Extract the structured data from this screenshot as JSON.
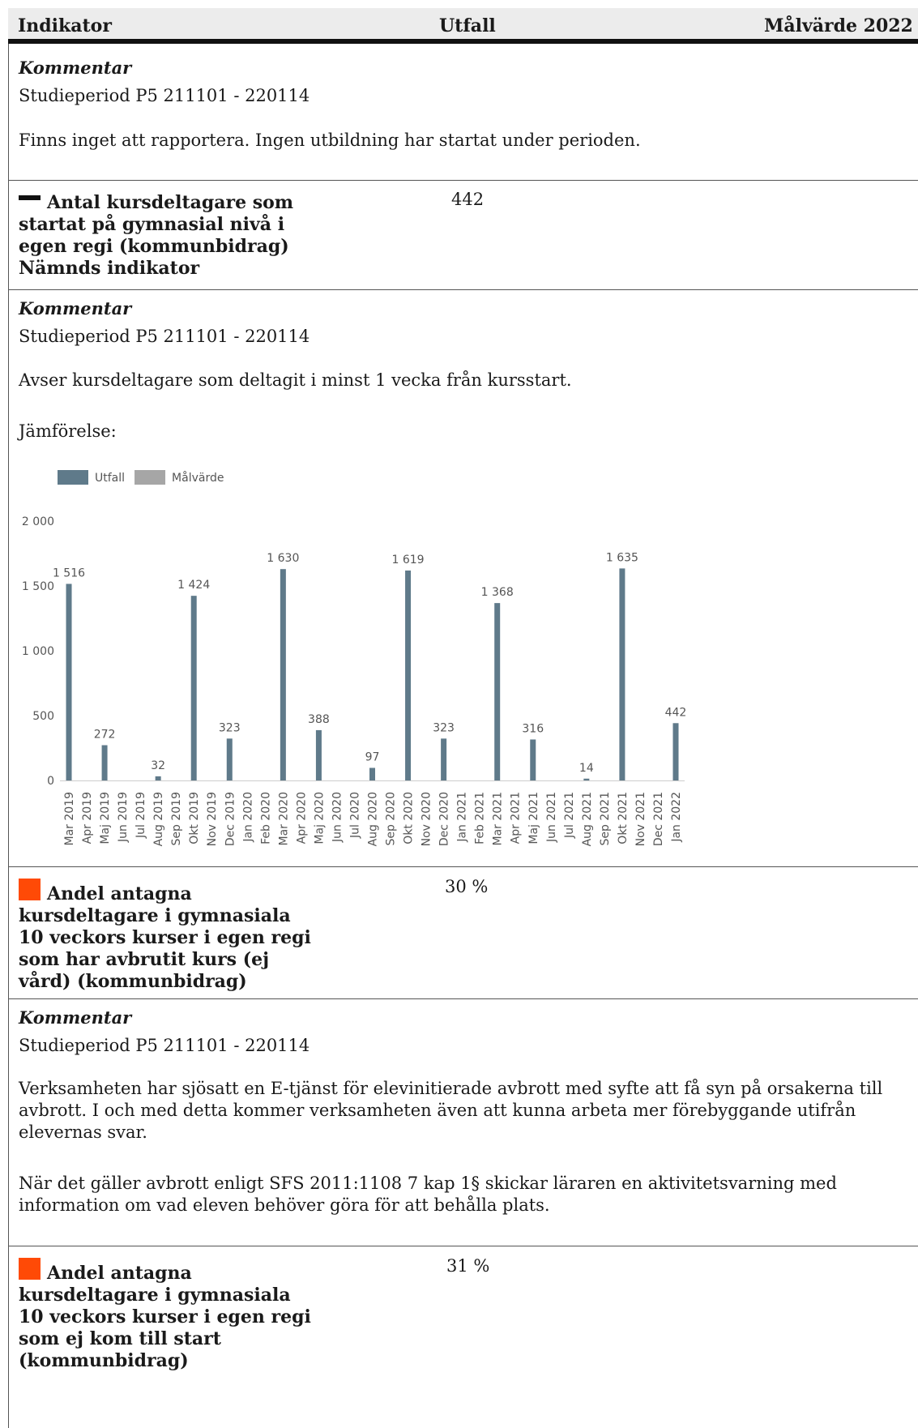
{
  "header": {
    "col1": "Indikator",
    "col2": "Utfall",
    "col3": "Målvärde 2022"
  },
  "section1": {
    "comment_label": "Kommentar",
    "study_period": "Studieperiod P5 211101 - 220114",
    "text": "Finns inget att rapportera. Ingen utbildning har startat under perioden."
  },
  "indicator1": {
    "icon": "minus-icon",
    "title": "Antal kursdeltagare som startat på gymnasial nivå i egen regi (kommunbidrag) Nämnds indikator",
    "value": "442"
  },
  "section2": {
    "comment_label": "Kommentar",
    "study_period": "Studieperiod P5 211101 - 220114",
    "text": "Avser kursdeltagare som deltagit i minst 1 vecka från kursstart.",
    "comparison": "Jämförelse:"
  },
  "chart_data": {
    "type": "bar",
    "legend": [
      {
        "name": "Utfall",
        "color": "#5f7a8a"
      },
      {
        "name": "Målvärde",
        "color": "#a6a6a6"
      }
    ],
    "legend_position": "top-left",
    "ylim": [
      0,
      2000
    ],
    "yticks": [
      0,
      500,
      1000,
      2000
    ],
    "ytick_labels": [
      "0",
      "500",
      "1 000",
      "2 000"
    ],
    "ytick_extra": [
      {
        "value": 1500,
        "label": "1 500"
      }
    ],
    "categories": [
      "Mar 2019",
      "Apr 2019",
      "Maj 2019",
      "Jun 2019",
      "Jul 2019",
      "Aug 2019",
      "Sep 2019",
      "Okt 2019",
      "Nov 2019",
      "Dec 2019",
      "Jan 2020",
      "Feb 2020",
      "Mar 2020",
      "Apr 2020",
      "Maj 2020",
      "Jun 2020",
      "Jul 2020",
      "Aug 2020",
      "Sep 2020",
      "Okt 2020",
      "Nov 2020",
      "Dec 2020",
      "Jan 2021",
      "Feb 2021",
      "Mar 2021",
      "Apr 2021",
      "Maj 2021",
      "Jun 2021",
      "Jul 2021",
      "Aug 2021",
      "Sep 2021",
      "Okt 2021",
      "Nov 2021",
      "Dec 2021",
      "Jan 2022"
    ],
    "series": [
      {
        "name": "Utfall",
        "values": [
          1516,
          null,
          272,
          null,
          null,
          32,
          null,
          1424,
          null,
          323,
          null,
          null,
          1630,
          null,
          388,
          null,
          null,
          97,
          null,
          1619,
          null,
          323,
          null,
          null,
          1368,
          null,
          316,
          null,
          null,
          14,
          null,
          1635,
          null,
          null,
          442
        ],
        "labels": [
          "1 516",
          "",
          "272",
          "",
          "",
          "32",
          "",
          "1 424",
          "",
          "323",
          "",
          "",
          "1 630",
          "",
          "388",
          "",
          "",
          "97",
          "",
          "1 619",
          "",
          "323",
          "",
          "",
          "1 368",
          "",
          "316",
          "",
          "",
          "14",
          "",
          "1 635",
          "",
          "",
          "442"
        ]
      }
    ],
    "grid": false
  },
  "indicator2": {
    "icon": "orange-square-icon",
    "title": "Andel antagna kursdeltagare i gymnasiala 10 veckors kurser i egen regi som har avbrutit kurs (ej vård) (kommunbidrag)",
    "value": "30 %"
  },
  "section3": {
    "comment_label": "Kommentar",
    "study_period": "Studieperiod P5 211101 - 220114",
    "text1": "Verksamheten har sjösatt en E-tjänst för elevinitierade avbrott med syfte att få syn på orsakerna till avbrott. I och med detta kommer verksamheten även att kunna arbeta mer förebyggande utifrån elevernas svar.",
    "text2": "När det gäller avbrott enligt SFS 2011:1108 7 kap 1§ skickar läraren en aktivitetsvarning med information om vad eleven behöver göra för att behålla plats."
  },
  "indicator3": {
    "icon": "orange-square-icon",
    "title": "Andel antagna kursdeltagare i gymnasiala 10 veckors kurser i egen regi som ej kom till start (kommunbidrag)",
    "value": "31 %"
  }
}
